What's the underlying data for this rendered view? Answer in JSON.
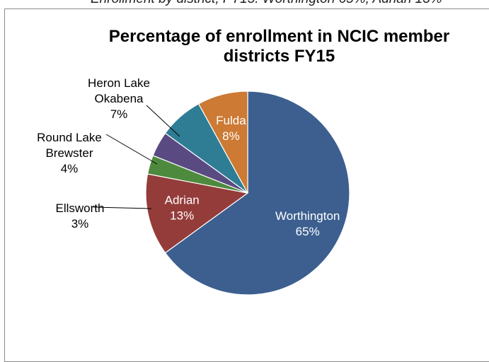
{
  "top_caption": "Enrollment by district, FY15: Worthington 65%, Adrian 13%",
  "chart_data": {
    "type": "pie",
    "title_lines": [
      "Percentage of enrollment in NCIC member",
      "districts FY15"
    ],
    "slices": [
      {
        "label_lines": [
          "Worthington"
        ],
        "value": 65,
        "value_label": "65%",
        "color": "#3c5f8f"
      },
      {
        "label_lines": [
          "Adrian"
        ],
        "value": 13,
        "value_label": "13%",
        "color": "#943c3a"
      },
      {
        "label_lines": [
          "Ellsworth"
        ],
        "value": 3,
        "value_label": "3%",
        "color": "#4e8a3e"
      },
      {
        "label_lines": [
          "Round Lake",
          "Brewster"
        ],
        "value": 4,
        "value_label": "4%",
        "color": "#5a4a82"
      },
      {
        "label_lines": [
          "Heron Lake",
          "Okabena"
        ],
        "value": 7,
        "value_label": "7%",
        "color": "#2e7d95"
      },
      {
        "label_lines": [
          "Fulda"
        ],
        "value": 8,
        "value_label": "8%",
        "color": "#cc7a34"
      }
    ]
  }
}
